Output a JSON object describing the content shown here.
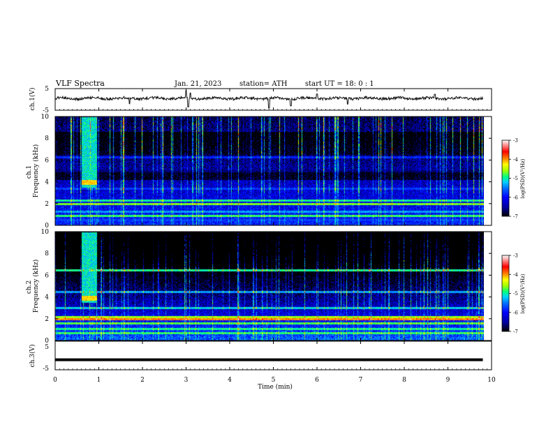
{
  "chart_data": {
    "type": "heatmap",
    "title": "VLF  Spectra",
    "date": "Jan. 21, 2023",
    "station": "station= ATH",
    "start": "start  UT  =   18: 0  : 1",
    "xlabel": "Time  (min)",
    "xlim": [
      0,
      10
    ],
    "xticks": [
      "0",
      "1",
      "2",
      "3",
      "4",
      "5",
      "6",
      "7",
      "8",
      "9",
      "10"
    ],
    "data_end_min": 9.8,
    "panels": [
      {
        "id": "ch1-waveform",
        "type": "line",
        "ylabel": "ch.1(V)",
        "ylim": [
          -5,
          5
        ],
        "yticks": [
          "5",
          "-5"
        ],
        "baseline": 0.5,
        "noise_amp": 0.6,
        "spikes": [
          {
            "t": 1.7,
            "v": -2.0
          },
          {
            "t": 3.0,
            "v": 4.2
          },
          {
            "t": 3.05,
            "v": -3.5
          },
          {
            "t": 3.1,
            "v": 3.0
          },
          {
            "t": 4.9,
            "v": -4.0
          },
          {
            "t": 5.4,
            "v": -3.0
          },
          {
            "t": 6.0,
            "v": 2.5
          },
          {
            "t": 6.7,
            "v": -2.2
          },
          {
            "t": 8.7,
            "v": 2.4
          }
        ]
      },
      {
        "id": "ch1-spectrogram",
        "type": "heatmap",
        "ylabel": "ch.1\nFrequency  (kHz)",
        "ylim": [
          0,
          10
        ],
        "yticks": [
          "0",
          "2",
          "4",
          "6",
          "8",
          "10"
        ],
        "colorbar": {
          "label": "log(PSD)(V²/Hz)",
          "range": [
            -7,
            -3
          ],
          "ticks": [
            "-3",
            "-4",
            "-5",
            "-6",
            "-7"
          ]
        },
        "burst": {
          "t_start": 0.6,
          "t_end": 0.95,
          "f_line": 4.0
        },
        "lines_khz": [
          {
            "f": 0.2,
            "level": -7.0
          },
          {
            "f": 0.5,
            "level": -5.8
          },
          {
            "f": 0.9,
            "level": -4.9
          },
          {
            "f": 1.3,
            "level": -5.4
          },
          {
            "f": 2.0,
            "level": -4.7
          },
          {
            "f": 2.3,
            "level": -5.0
          },
          {
            "f": 3.4,
            "level": -5.8
          },
          {
            "f": 5.0,
            "level": -6.7
          },
          {
            "f": 6.3,
            "level": -5.9
          }
        ]
      },
      {
        "id": "ch2-spectrogram",
        "type": "heatmap",
        "ylabel": "ch.2\nFrequency  (kHz)",
        "ylim": [
          0,
          10
        ],
        "yticks": [
          "0",
          "2",
          "4",
          "6",
          "8",
          "10"
        ],
        "colorbar": {
          "label": "log(PSD)(V²/Hz)",
          "range": [
            -7,
            -3
          ],
          "ticks": [
            "-3",
            "-4",
            "-5",
            "-6",
            "-7"
          ]
        },
        "burst": {
          "t_start": 0.6,
          "t_end": 0.95,
          "f_line": 3.9
        },
        "lines_khz": [
          {
            "f": 0.7,
            "level": -4.9
          },
          {
            "f": 1.1,
            "level": -5.0
          },
          {
            "f": 1.6,
            "level": -4.8
          },
          {
            "f": 2.0,
            "level": -4.0
          },
          {
            "f": 2.2,
            "level": -4.6
          },
          {
            "f": 3.0,
            "level": -5.2
          },
          {
            "f": 4.5,
            "level": -5.4
          },
          {
            "f": 6.5,
            "level": -5.0
          }
        ]
      },
      {
        "id": "ch3-waveform",
        "type": "line",
        "ylabel": "ch.3(V)",
        "ylim": [
          -5,
          5
        ],
        "yticks": [
          "5",
          "-5"
        ],
        "baseline": -1.5,
        "noise_amp": 0.05
      }
    ]
  },
  "colors": {
    "axis": "#000000",
    "trace": "#111111",
    "colormap": [
      "#000000",
      "#0000a0",
      "#0000ff",
      "#0070ff",
      "#00d0ff",
      "#00ff80",
      "#a0ff00",
      "#ffff00",
      "#ff8000",
      "#ff0000",
      "#ffffff"
    ]
  }
}
